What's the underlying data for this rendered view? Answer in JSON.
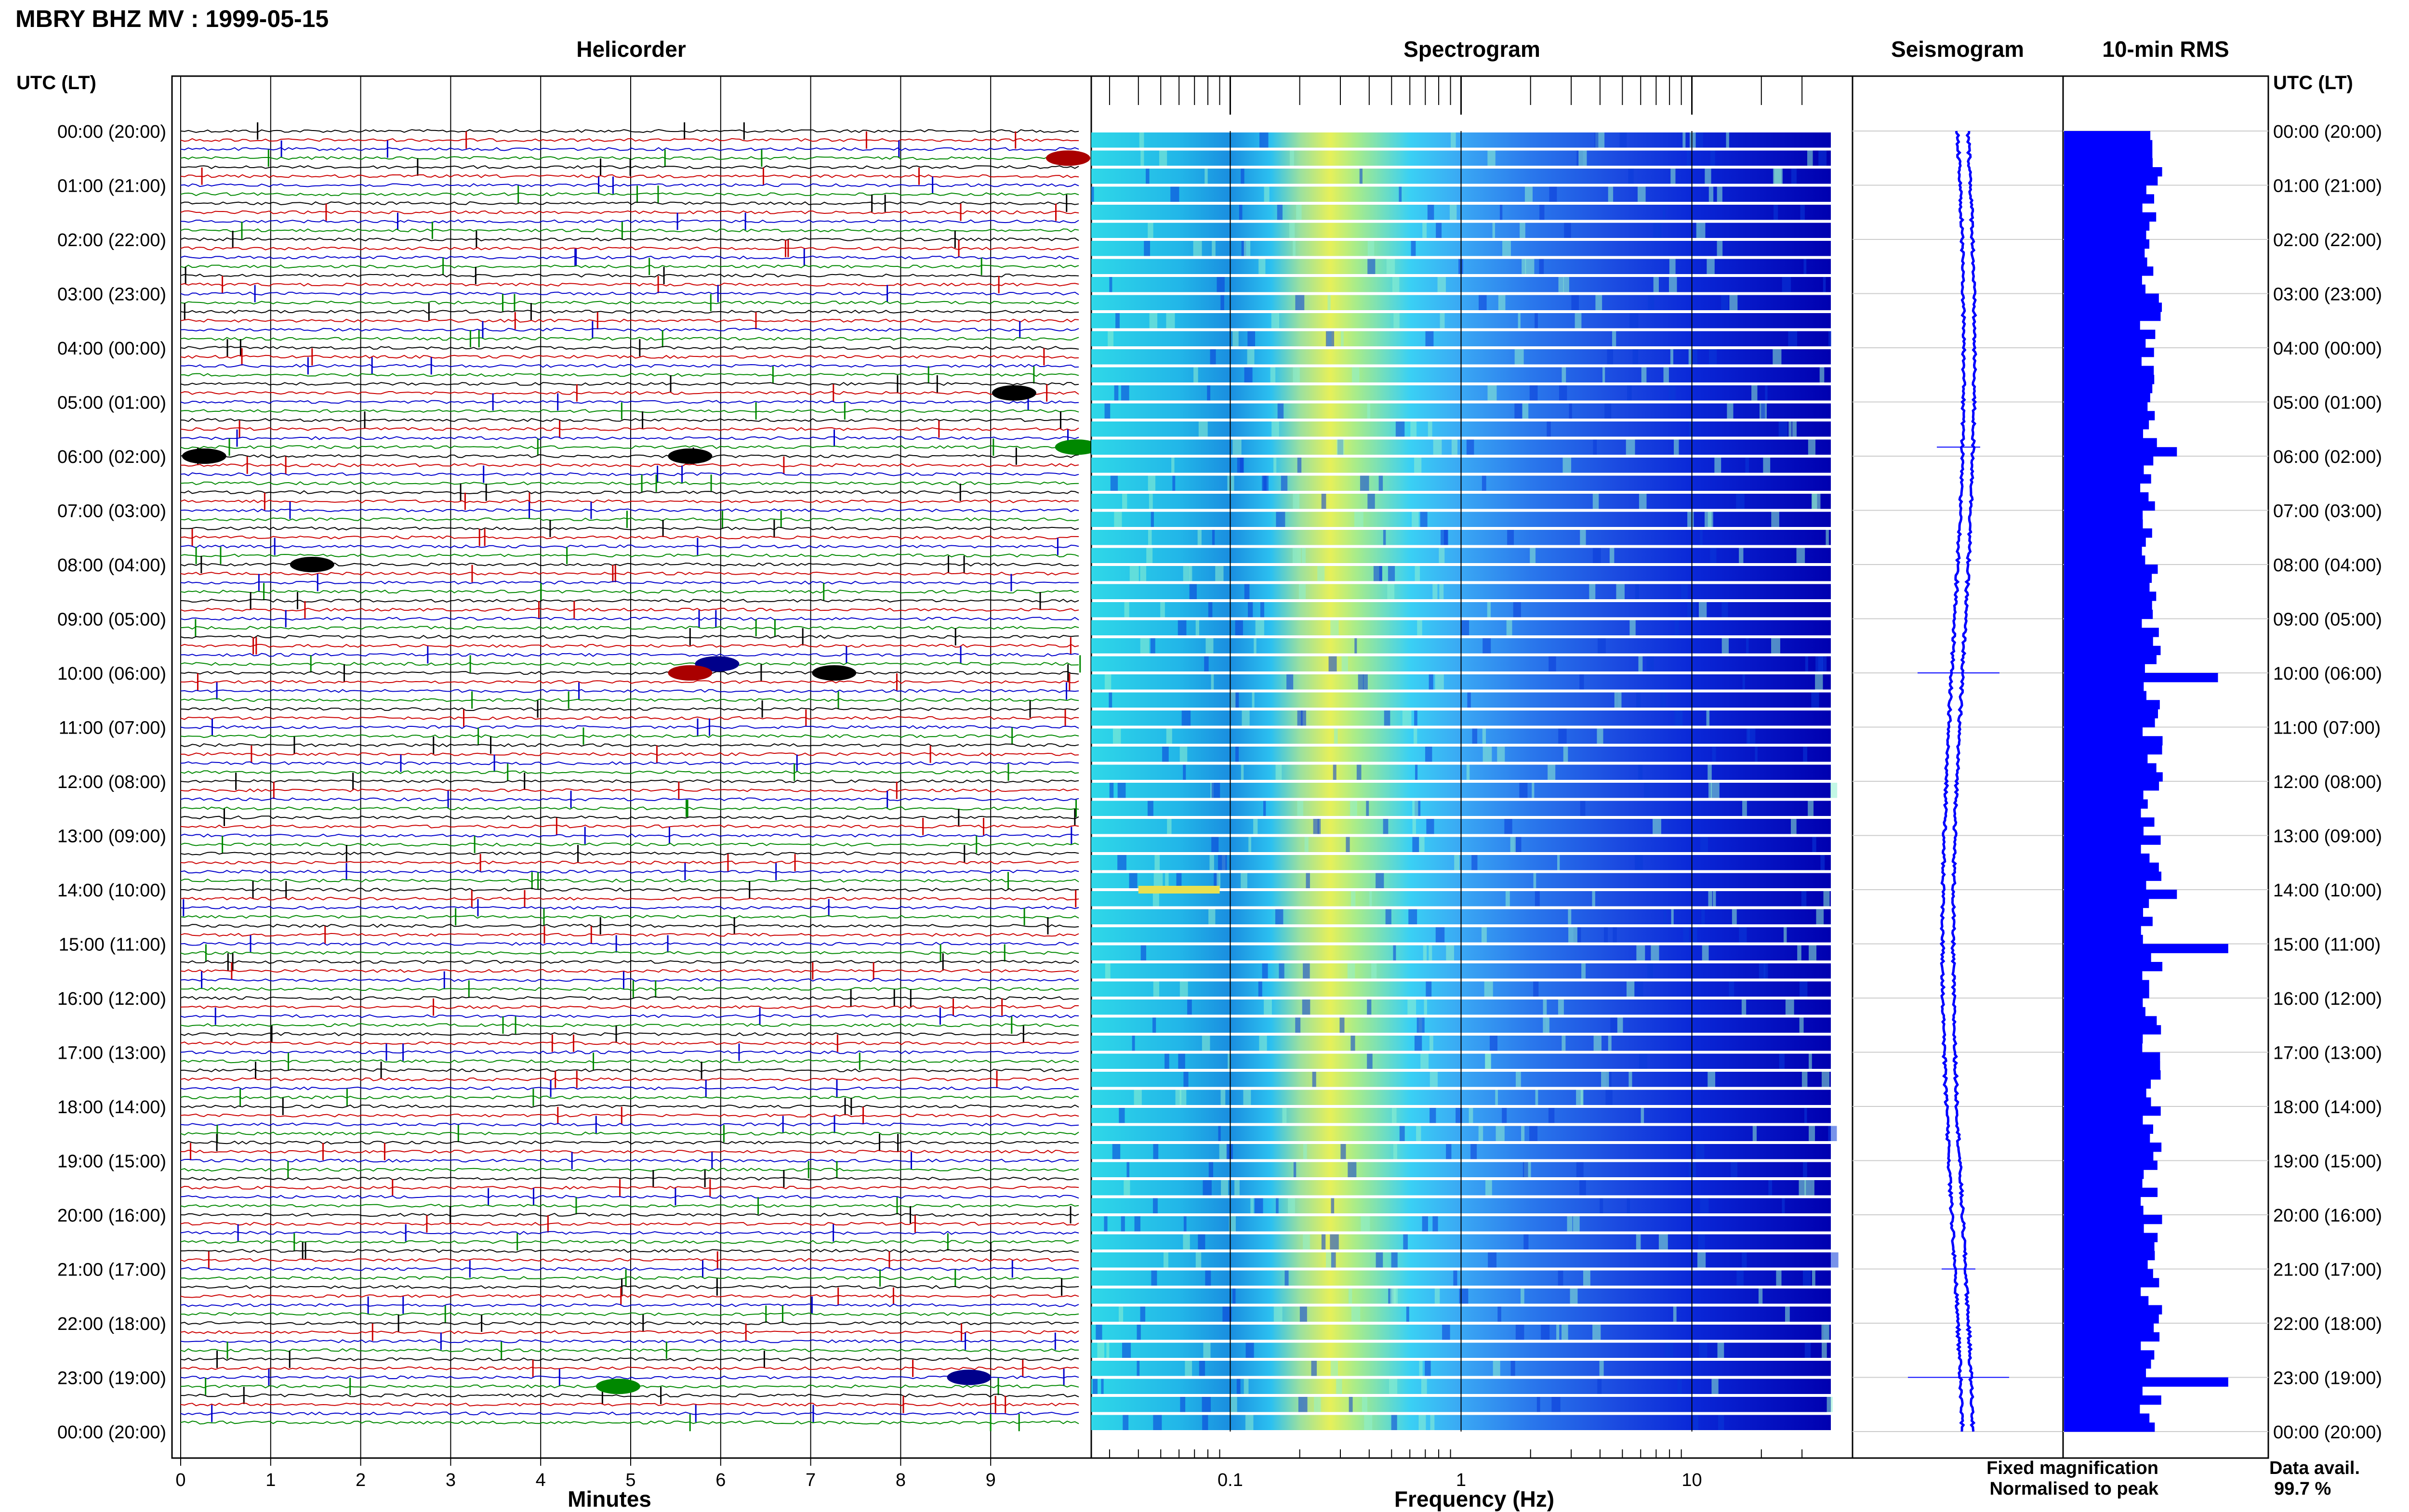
{
  "title": "MBRY BHZ MV : 1999-05-15",
  "panels": {
    "helicorder": "Helicorder",
    "spectrogram": "Spectrogram",
    "seismogram": "Seismogram",
    "rms": "10-min RMS"
  },
  "time_axis_label": "UTC (LT)",
  "time_labels": [
    "00:00 (20:00)",
    "01:00 (21:00)",
    "02:00 (22:00)",
    "03:00 (23:00)",
    "04:00 (00:00)",
    "05:00 (01:00)",
    "06:00 (02:00)",
    "07:00 (03:00)",
    "08:00 (04:00)",
    "09:00 (05:00)",
    "10:00 (06:00)",
    "11:00 (07:00)",
    "12:00 (08:00)",
    "13:00 (09:00)",
    "14:00 (10:00)",
    "15:00 (11:00)",
    "16:00 (12:00)",
    "17:00 (13:00)",
    "18:00 (14:00)",
    "19:00 (15:00)",
    "20:00 (16:00)",
    "21:00 (17:00)",
    "22:00 (18:00)",
    "23:00 (19:00)",
    "00:00 (20:00)"
  ],
  "helicorder_axis": {
    "label": "Minutes",
    "ticks": [
      "0",
      "1",
      "2",
      "3",
      "4",
      "5",
      "6",
      "7",
      "8",
      "9"
    ],
    "xlim": [
      0,
      10
    ],
    "trace_colors": [
      "#000000",
      "#cc0000",
      "#0000cc",
      "#008800"
    ]
  },
  "spectrogram_axis": {
    "label": "Frequency (Hz)",
    "ticks": [
      "0.1",
      "1",
      "10"
    ],
    "scale": "log",
    "xlim": [
      0.025,
      40
    ]
  },
  "legend": {
    "fixed": "Fixed magnification",
    "normalised": "Normalised to peak",
    "fixed_color": "#0000ff",
    "normalised_color": "#ff0000"
  },
  "data_avail": {
    "label": "Data avail.",
    "value": "99.7 %"
  },
  "chart_data": [
    {
      "type": "line",
      "title": "Helicorder",
      "xlabel": "Minutes",
      "ylabel": "UTC (LT)",
      "xlim": [
        0,
        10
      ],
      "rows": 144,
      "minutes_per_row": 10,
      "events": [
        {
          "time": "00:30",
          "minute": 9.7,
          "color": "red"
        },
        {
          "time": "04:50",
          "minute": 9.1,
          "color": "black"
        },
        {
          "time": "05:50",
          "minute": 9.8,
          "color": "green"
        },
        {
          "time": "06:00",
          "minute": 0.1,
          "color": "black"
        },
        {
          "time": "06:00",
          "minute": 5.5,
          "color": "black"
        },
        {
          "time": "08:00",
          "minute": 1.3,
          "color": "black"
        },
        {
          "time": "09:50",
          "minute": 5.8,
          "color": "blue"
        },
        {
          "time": "10:00",
          "minute": 5.5,
          "color": "red"
        },
        {
          "time": "10:00",
          "minute": 7.1,
          "color": "black"
        },
        {
          "time": "23:00",
          "minute": 8.6,
          "color": "blue"
        },
        {
          "time": "23:10",
          "minute": 4.7,
          "color": "green"
        }
      ]
    },
    {
      "type": "heatmap",
      "title": "Spectrogram",
      "xlabel": "Frequency (Hz)",
      "x_scale": "log",
      "xlim": [
        0.025,
        40
      ],
      "rows": 72,
      "peak_band_hz": [
        0.2,
        0.35
      ],
      "secondary_band_hz": [
        0.5,
        1.0
      ],
      "note_rows": [
        {
          "time": "14:00",
          "band_hz": [
            0.04,
            0.09
          ]
        }
      ]
    },
    {
      "type": "line",
      "title": "Seismogram",
      "legend": [
        "Fixed magnification",
        "Normalised to peak"
      ]
    },
    {
      "type": "bar",
      "title": "10-min RMS",
      "orientation": "horizontal",
      "bins": 144,
      "baseline_level": 0.45,
      "spikes": [
        {
          "time": "05:50",
          "level": 0.55
        },
        {
          "time": "10:00",
          "level": 0.75
        },
        {
          "time": "14:00",
          "level": 0.55
        },
        {
          "time": "15:00",
          "level": 0.8
        },
        {
          "time": "23:00",
          "level": 0.8
        }
      ]
    }
  ]
}
